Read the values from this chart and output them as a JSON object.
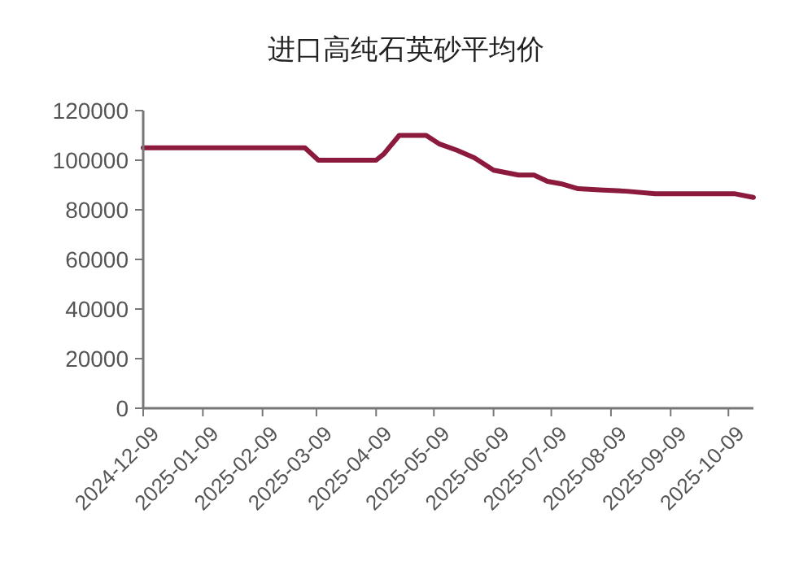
{
  "chart_data": {
    "type": "line",
    "title": "进口高纯石英砂平均价",
    "x": [
      "2024-12-09",
      "2025-03-03",
      "2025-03-10",
      "2025-04-09",
      "2025-04-13",
      "2025-04-21",
      "2025-05-05",
      "2025-05-12",
      "2025-05-21",
      "2025-05-30",
      "2025-06-09",
      "2025-06-22",
      "2025-06-30",
      "2025-07-07",
      "2025-07-14",
      "2025-07-23",
      "2025-08-03",
      "2025-08-17",
      "2025-09-01",
      "2025-10-12",
      "2025-10-22"
    ],
    "series": [
      {
        "color": "#8b1a3d",
        "values": [
          105000,
          105000,
          100000,
          100000,
          102500,
          110000,
          110000,
          106500,
          104000,
          101000,
          96000,
          94000,
          94000,
          91500,
          90500,
          88500,
          88000,
          87500,
          86500,
          86500,
          85000
        ]
      }
    ],
    "xlim": [
      "2024-12-09",
      "2025-10-22"
    ],
    "xticks": [
      {
        "value": "2024-12-09",
        "label": "2024-12-09"
      },
      {
        "value": "2025-01-09",
        "label": "2025-01-09"
      },
      {
        "value": "2025-02-09",
        "label": "2025-02-09"
      },
      {
        "value": "2025-03-09",
        "label": "2025-03-09"
      },
      {
        "value": "2025-04-09",
        "label": "2025-04-09"
      },
      {
        "value": "2025-05-09",
        "label": "2025-05-09"
      },
      {
        "value": "2025-06-09",
        "label": "2025-06-09"
      },
      {
        "value": "2025-07-09",
        "label": "2025-07-09"
      },
      {
        "value": "2025-08-09",
        "label": "2025-08-09"
      },
      {
        "value": "2025-09-09",
        "label": "2025-09-09"
      },
      {
        "value": "2025-10-09",
        "label": "2025-10-09"
      }
    ],
    "ylim": [
      0,
      120000
    ],
    "yticks": [
      0,
      20000,
      40000,
      60000,
      80000,
      100000,
      120000
    ],
    "grid": false,
    "marker": "none",
    "line_style": "solid"
  }
}
